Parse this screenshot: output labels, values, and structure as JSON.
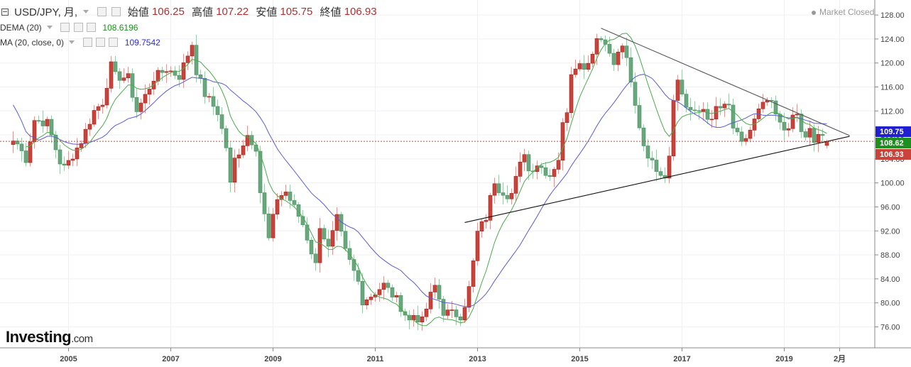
{
  "header": {
    "symbol": "USD/JPY, 月,",
    "ohlc": [
      {
        "label": "始値",
        "value": "106.25"
      },
      {
        "label": "高値",
        "value": "107.22"
      },
      {
        "label": "安値",
        "value": "105.75"
      },
      {
        "label": "終値",
        "value": "106.93"
      }
    ]
  },
  "indicators": [
    {
      "label": "DEMA (20)",
      "value": "108.6196",
      "color": "#1a8f1a"
    },
    {
      "label": "MA (20, close, 0)",
      "value": "109.7542",
      "color": "#2b2bd6"
    }
  ],
  "market_status": "Market Closed",
  "logo": {
    "main": "Investing",
    "suffix": ".com"
  },
  "chart_data": {
    "type": "candlestick",
    "y_range": [
      72.5,
      130.5
    ],
    "y_ticks": [
      "76.00",
      "80.00",
      "84.00",
      "88.00",
      "92.00",
      "96.00",
      "100.00",
      "104.00",
      "108.00",
      "112.00",
      "116.00",
      "120.00",
      "124.00",
      "128.00"
    ],
    "x_ticks": [
      "2005",
      "2007",
      "2009",
      "2011",
      "2013",
      "2015",
      "2017",
      "2019",
      "2月"
    ],
    "price_badges": [
      {
        "value": "109.75",
        "color": "#2020d0"
      },
      {
        "value": "108.62",
        "color": "#1e8e1e"
      },
      {
        "value": "106.93",
        "color": "#c9433b"
      }
    ],
    "current_price_line": 106.93,
    "up_color": "#c9433b",
    "down_color": "#6aa77f",
    "dema_color": "#4caa4c",
    "ma_color": "#5a5ad8",
    "trendlines": [
      {
        "from": [
          "2015-06",
          125.8
        ],
        "to": [
          "2019-11",
          107.8
        ]
      },
      {
        "from": [
          "2012-10",
          93.4
        ],
        "to": [
          "2019-11",
          107.8
        ]
      }
    ],
    "series_anchors": [
      [
        "2003-12",
        107.0
      ],
      [
        "2004-01",
        106.5
      ],
      [
        "2004-03",
        104.0
      ],
      [
        "2004-05",
        110.5
      ],
      [
        "2004-08",
        110.0
      ],
      [
        "2004-11",
        103.5
      ],
      [
        "2004-12",
        102.5
      ],
      [
        "2005-01",
        103.5
      ],
      [
        "2005-04",
        107.0
      ],
      [
        "2005-07",
        112.0
      ],
      [
        "2005-09",
        113.5
      ],
      [
        "2005-11",
        119.5
      ],
      [
        "2005-12",
        117.8
      ],
      [
        "2006-03",
        117.5
      ],
      [
        "2006-05",
        112.0
      ],
      [
        "2006-07",
        114.5
      ],
      [
        "2006-09",
        117.5
      ],
      [
        "2006-12",
        119.0
      ],
      [
        "2007-03",
        117.8
      ],
      [
        "2007-06",
        123.2
      ],
      [
        "2007-07",
        118.7
      ],
      [
        "2007-09",
        114.8
      ],
      [
        "2007-12",
        111.8
      ],
      [
        "2008-02",
        106.0
      ],
      [
        "2008-03",
        99.7
      ],
      [
        "2008-04",
        103.9
      ],
      [
        "2008-07",
        108.0
      ],
      [
        "2008-09",
        106.0
      ],
      [
        "2008-10",
        98.5
      ],
      [
        "2008-12",
        90.6
      ],
      [
        "2009-02",
        97.5
      ],
      [
        "2009-04",
        98.5
      ],
      [
        "2009-07",
        94.5
      ],
      [
        "2009-08",
        93.1
      ],
      [
        "2009-11",
        86.3
      ],
      [
        "2009-12",
        93.0
      ],
      [
        "2010-02",
        89.0
      ],
      [
        "2010-04",
        94.0
      ],
      [
        "2010-06",
        88.5
      ],
      [
        "2010-09",
        83.5
      ],
      [
        "2010-10",
        80.4
      ],
      [
        "2010-12",
        81.2
      ],
      [
        "2011-03",
        83.0
      ],
      [
        "2011-06",
        80.5
      ],
      [
        "2011-09",
        77.0
      ],
      [
        "2011-10",
        78.0
      ],
      [
        "2011-12",
        76.9
      ],
      [
        "2012-02",
        81.2
      ],
      [
        "2012-03",
        82.8
      ],
      [
        "2012-05",
        78.5
      ],
      [
        "2012-07",
        78.2
      ],
      [
        "2012-09",
        77.9
      ],
      [
        "2012-10",
        79.8
      ],
      [
        "2012-11",
        82.4
      ],
      [
        "2012-12",
        86.7
      ],
      [
        "2013-01",
        91.7
      ],
      [
        "2013-03",
        94.2
      ],
      [
        "2013-04",
        97.4
      ],
      [
        "2013-05",
        100.4
      ],
      [
        "2013-06",
        99.1
      ],
      [
        "2013-08",
        98.1
      ],
      [
        "2013-09",
        98.2
      ],
      [
        "2013-12",
        105.3
      ],
      [
        "2014-01",
        102.0
      ],
      [
        "2014-03",
        103.2
      ],
      [
        "2014-06",
        101.3
      ],
      [
        "2014-08",
        104.1
      ],
      [
        "2014-09",
        109.6
      ],
      [
        "2014-10",
        112.3
      ],
      [
        "2014-11",
        118.6
      ],
      [
        "2014-12",
        119.8
      ],
      [
        "2015-02",
        119.6
      ],
      [
        "2015-03",
        120.1
      ],
      [
        "2015-05",
        124.1
      ],
      [
        "2015-07",
        123.9
      ],
      [
        "2015-08",
        121.2
      ],
      [
        "2015-09",
        119.8
      ],
      [
        "2015-11",
        123.1
      ],
      [
        "2015-12",
        120.2
      ],
      [
        "2016-02",
        112.7
      ],
      [
        "2016-04",
        106.4
      ],
      [
        "2016-06",
        103.2
      ],
      [
        "2016-09",
        101.3
      ],
      [
        "2016-10",
        104.8
      ],
      [
        "2016-11",
        114.5
      ],
      [
        "2016-12",
        117.0
      ],
      [
        "2017-02",
        112.8
      ],
      [
        "2017-04",
        111.4
      ],
      [
        "2017-06",
        112.4
      ],
      [
        "2017-08",
        110.0
      ],
      [
        "2017-09",
        112.5
      ],
      [
        "2017-11",
        112.5
      ],
      [
        "2017-12",
        112.7
      ],
      [
        "2018-01",
        109.2
      ],
      [
        "2018-03",
        106.3
      ],
      [
        "2018-05",
        108.8
      ],
      [
        "2018-07",
        111.9
      ],
      [
        "2018-09",
        113.7
      ],
      [
        "2018-10",
        112.9
      ],
      [
        "2018-12",
        109.6
      ],
      [
        "2019-01",
        108.9
      ],
      [
        "2019-04",
        111.4
      ],
      [
        "2019-05",
        108.3
      ],
      [
        "2019-06",
        107.8
      ],
      [
        "2019-07",
        108.7
      ],
      [
        "2019-08",
        106.3
      ],
      [
        "2019-09",
        108.1
      ],
      [
        "2019-10",
        108.0
      ],
      [
        "2019-11",
        106.93
      ]
    ]
  }
}
